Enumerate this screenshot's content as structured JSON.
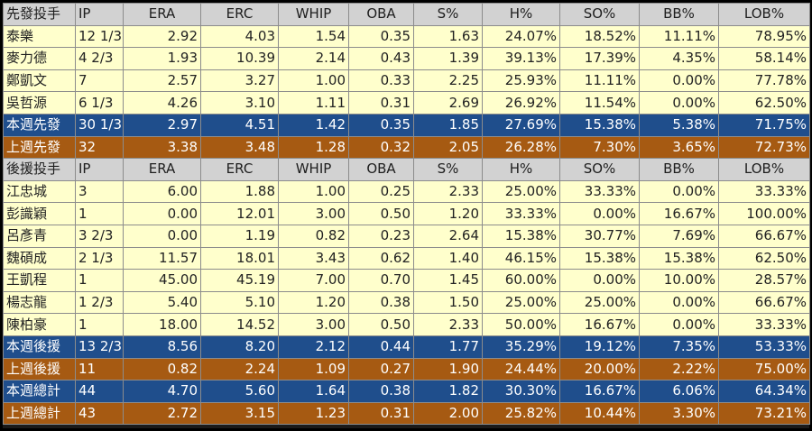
{
  "columns": [
    "IP",
    "ERA",
    "ERC",
    "WHIP",
    "OBA",
    "S%",
    "H%",
    "SO%",
    "BB%",
    "LOB%"
  ],
  "starters": {
    "header": "先發投手",
    "rows": [
      {
        "name": "泰樂",
        "values": [
          "12 1/3",
          "2.92",
          "4.03",
          "1.54",
          "0.35",
          "1.63",
          "24.07%",
          "18.52%",
          "11.11%",
          "78.95%"
        ]
      },
      {
        "name": "麥力德",
        "values": [
          "4 2/3",
          "1.93",
          "10.39",
          "2.14",
          "0.43",
          "1.39",
          "39.13%",
          "17.39%",
          "4.35%",
          "58.14%"
        ]
      },
      {
        "name": "鄭凱文",
        "values": [
          "7",
          "2.57",
          "3.27",
          "1.00",
          "0.33",
          "2.25",
          "25.93%",
          "11.11%",
          "0.00%",
          "77.78%"
        ]
      },
      {
        "name": "吳哲源",
        "values": [
          "6 1/3",
          "4.26",
          "3.10",
          "1.11",
          "0.31",
          "2.69",
          "26.92%",
          "11.54%",
          "0.00%",
          "62.50%"
        ]
      }
    ],
    "this_week": {
      "name": "本週先發",
      "values": [
        "30 1/3",
        "2.97",
        "4.51",
        "1.42",
        "0.35",
        "1.85",
        "27.69%",
        "15.38%",
        "5.38%",
        "71.75%"
      ]
    },
    "last_week": {
      "name": "上週先發",
      "values": [
        "32",
        "3.38",
        "3.48",
        "1.28",
        "0.32",
        "2.05",
        "26.28%",
        "7.30%",
        "3.65%",
        "72.73%"
      ]
    }
  },
  "relievers": {
    "header": "後援投手",
    "rows": [
      {
        "name": "江忠城",
        "values": [
          "3",
          "6.00",
          "1.88",
          "1.00",
          "0.25",
          "2.33",
          "25.00%",
          "33.33%",
          "0.00%",
          "33.33%"
        ]
      },
      {
        "name": "彭識穎",
        "values": [
          "1",
          "0.00",
          "12.01",
          "3.00",
          "0.50",
          "1.20",
          "33.33%",
          "0.00%",
          "16.67%",
          "100.00%"
        ]
      },
      {
        "name": "呂彥青",
        "values": [
          "3 2/3",
          "0.00",
          "1.19",
          "0.82",
          "0.23",
          "2.64",
          "15.38%",
          "30.77%",
          "7.69%",
          "66.67%"
        ]
      },
      {
        "name": "魏碩成",
        "values": [
          "2 1/3",
          "11.57",
          "18.01",
          "3.43",
          "0.62",
          "1.40",
          "46.15%",
          "15.38%",
          "15.38%",
          "62.50%"
        ]
      },
      {
        "name": "王凱程",
        "values": [
          "1",
          "45.00",
          "45.19",
          "7.00",
          "0.70",
          "1.45",
          "60.00%",
          "0.00%",
          "10.00%",
          "28.57%"
        ]
      },
      {
        "name": "楊志龍",
        "values": [
          "1 2/3",
          "5.40",
          "5.10",
          "1.20",
          "0.38",
          "1.50",
          "25.00%",
          "25.00%",
          "0.00%",
          "66.67%"
        ]
      },
      {
        "name": "陳柏豪",
        "values": [
          "1",
          "18.00",
          "14.52",
          "3.00",
          "0.50",
          "2.33",
          "50.00%",
          "16.67%",
          "0.00%",
          "33.33%"
        ]
      }
    ],
    "this_week": {
      "name": "本週後援",
      "values": [
        "13 2/3",
        "8.56",
        "8.20",
        "2.12",
        "0.44",
        "1.77",
        "35.29%",
        "19.12%",
        "7.35%",
        "53.33%"
      ]
    },
    "last_week": {
      "name": "上週後援",
      "values": [
        "11",
        "0.82",
        "2.24",
        "1.09",
        "0.27",
        "1.90",
        "24.44%",
        "20.00%",
        "2.22%",
        "75.00%"
      ]
    }
  },
  "totals": {
    "this_week": {
      "name": "本週總計",
      "values": [
        "44",
        "4.70",
        "5.60",
        "1.64",
        "0.38",
        "1.82",
        "30.30%",
        "16.67%",
        "6.06%",
        "64.34%"
      ]
    },
    "last_week": {
      "name": "上週總計",
      "values": [
        "43",
        "2.72",
        "3.15",
        "1.23",
        "0.31",
        "2.00",
        "25.82%",
        "10.44%",
        "3.30%",
        "73.21%"
      ]
    }
  },
  "colors": {
    "header_bg": "#d2d2d2",
    "player_bg": "#ffffcc",
    "this_week_bg": "#1f4e8c",
    "last_week_bg": "#a65a12"
  }
}
